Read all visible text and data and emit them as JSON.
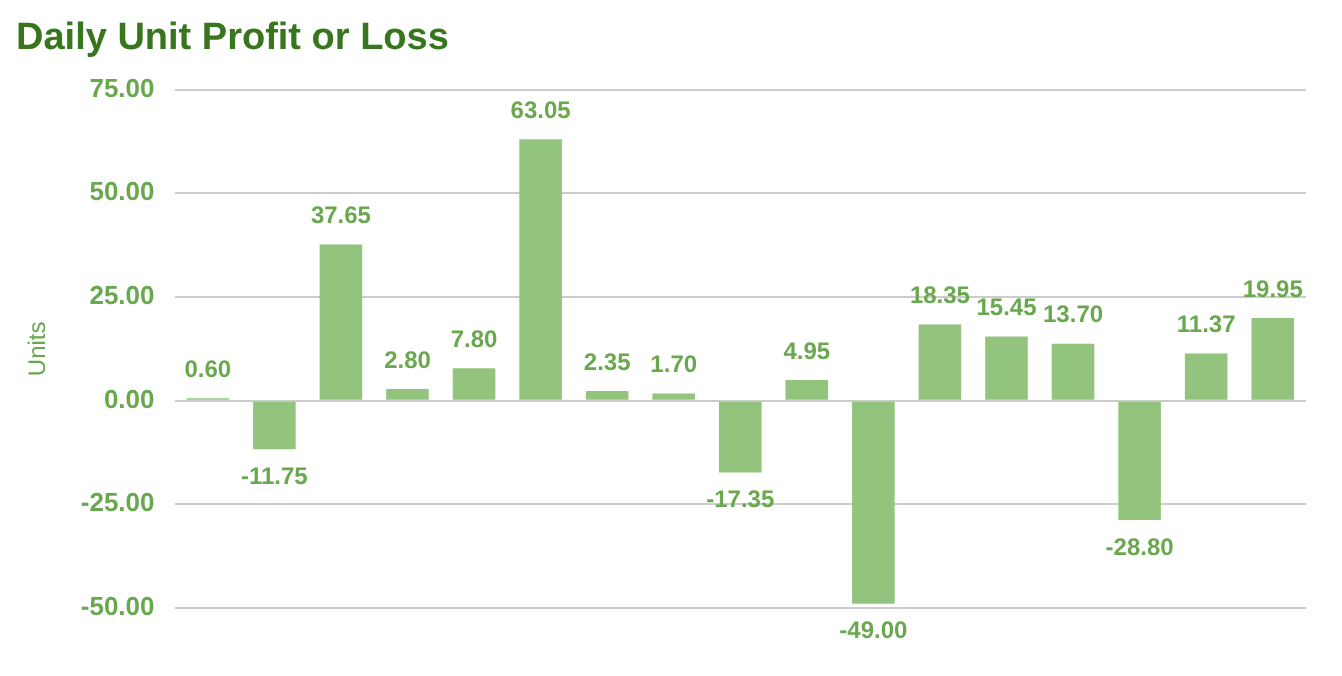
{
  "chart_data": {
    "type": "bar",
    "title": "Daily Unit Profit or Loss",
    "ylabel": "Units",
    "categories": [
      null,
      null,
      null,
      null,
      null,
      null,
      null,
      null,
      null,
      null,
      null,
      null,
      null,
      null,
      null,
      null,
      null
    ],
    "values": [
      0.6,
      -11.75,
      37.65,
      2.8,
      7.8,
      63.05,
      2.35,
      1.7,
      -17.35,
      4.95,
      -49.0,
      18.35,
      15.45,
      13.7,
      -28.8,
      11.37,
      19.95
    ],
    "value_labels": [
      "0.60",
      "-11.75",
      "37.65",
      "2.80",
      "7.80",
      "63.05",
      "2.35",
      "1.70",
      "-17.35",
      "4.95",
      "-49.00",
      "18.35",
      "15.45",
      "13.70",
      "-28.80",
      "11.37",
      "19.95"
    ],
    "color": "#93c47d",
    "ylim": [
      -50,
      75
    ],
    "yticks": [
      {
        "value": -50,
        "label": "-50.00"
      },
      {
        "value": -25,
        "label": "-25.00"
      },
      {
        "value": 0,
        "label": "0.00"
      },
      {
        "value": 25,
        "label": "25.00"
      },
      {
        "value": 50,
        "label": "50.00"
      },
      {
        "value": 75,
        "label": "75.00"
      }
    ],
    "grid": "y",
    "legend": false,
    "tick_labels": "y"
  }
}
